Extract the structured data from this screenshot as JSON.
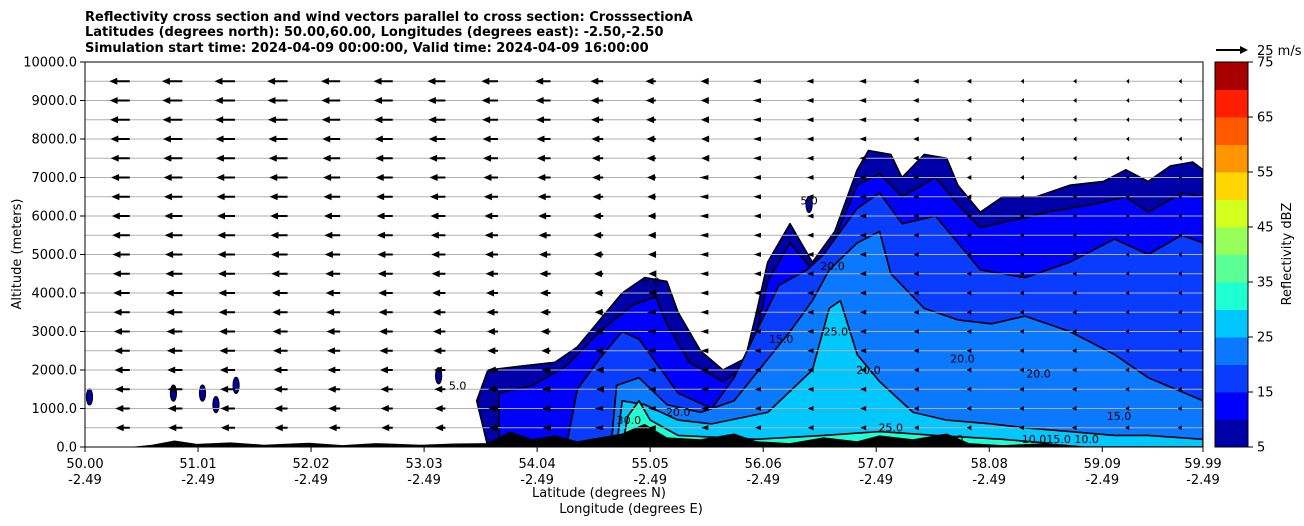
{
  "chart_data": {
    "type": "contour",
    "title_lines": [
      "Reflectivity cross section and wind vectors parallel to cross section: CrosssectionA",
      "Latitudes (degrees north): 50.00,60.00, Longitudes (degrees east): -2.50,-2.50",
      "Simulation start time: 2024-04-09 00:00:00, Valid time: 2024-04-09 16:00:00"
    ],
    "xlabel": "Latitude (degrees N)",
    "xlabel2": "Longitude (degrees E)",
    "ylabel": "Altitude (meters)",
    "xlim": [
      50.0,
      59.99
    ],
    "ylim": [
      0,
      10000
    ],
    "x_ticks": [
      {
        "lat": "50.00",
        "lon": "-2.49",
        "value": 50.0
      },
      {
        "lat": "51.01",
        "lon": "-2.49",
        "value": 51.01
      },
      {
        "lat": "52.02",
        "lon": "-2.49",
        "value": 52.02
      },
      {
        "lat": "53.03",
        "lon": "-2.49",
        "value": 53.03
      },
      {
        "lat": "54.04",
        "lon": "-2.49",
        "value": 54.04
      },
      {
        "lat": "55.05",
        "lon": "-2.49",
        "value": 55.05
      },
      {
        "lat": "56.06",
        "lon": "-2.49",
        "value": 56.06
      },
      {
        "lat": "57.07",
        "lon": "-2.49",
        "value": 57.07
      },
      {
        "lat": "58.08",
        "lon": "-2.49",
        "value": 58.08
      },
      {
        "lat": "59.09",
        "lon": "-2.49",
        "value": 59.09
      },
      {
        "lat": "59.99",
        "lon": "-2.49",
        "value": 59.99
      }
    ],
    "y_ticks": [
      0,
      1000,
      2000,
      3000,
      4000,
      5000,
      6000,
      7000,
      8000,
      9000,
      10000
    ],
    "y_tick_labels": [
      "0.0",
      "1000.0",
      "2000.0",
      "3000.0",
      "4000.0",
      "5000.0",
      "6000.0",
      "7000.0",
      "8000.0",
      "9000.0",
      "10000.0"
    ],
    "grid": "horizontal",
    "colorbar": {
      "label": "Reflectivity dBZ",
      "min": 5,
      "max": 75,
      "step": 5,
      "tick_values": [
        5,
        15,
        25,
        35,
        45,
        55,
        65,
        75
      ],
      "tick_labels": [
        "5",
        "15",
        "25",
        "35",
        "45",
        "55",
        "65",
        "75"
      ],
      "colors": [
        "#0000a8",
        "#0000ff",
        "#0a3cff",
        "#0a78ff",
        "#00c8ff",
        "#1effd2",
        "#5aff96",
        "#96ff5a",
        "#d2ff1e",
        "#ffd700",
        "#ff9600",
        "#ff5a00",
        "#ff1e00",
        "#a80000"
      ]
    },
    "wind_key": {
      "value": 25,
      "label": "25 m/s"
    },
    "wind_vectors": {
      "levels_m": [
        500,
        1000,
        1500,
        2000,
        2500,
        3000,
        3500,
        4000,
        4500,
        5000,
        5500,
        6000,
        6500,
        7000,
        7500,
        8000,
        8500,
        9000,
        9500
      ],
      "columns_lat": [
        50.4,
        50.87,
        51.34,
        51.81,
        52.28,
        52.75,
        53.22,
        53.69,
        54.16,
        54.63,
        55.1,
        55.57,
        56.04,
        56.51,
        56.98,
        57.45,
        57.92,
        58.39,
        58.86,
        59.33,
        59.8
      ],
      "u_ms_top": [
        -16,
        -16,
        -16,
        -16,
        -15,
        -15,
        -14,
        -13,
        -12,
        -10,
        -8,
        -6,
        -5,
        -4,
        -4,
        -3,
        -2,
        -1,
        -1,
        -0.5,
        -0.5
      ],
      "u_ms_low": [
        -11,
        -11,
        -11,
        -10,
        -9,
        -9,
        -8,
        -7,
        -6,
        -5,
        -4,
        -4,
        -3,
        -3,
        -3,
        -2,
        -2,
        -2,
        -2,
        -1.5,
        -1.5
      ]
    },
    "reflectivity_regions": [
      {
        "level": 5,
        "boundary": [
          [
            53.6,
            0
          ],
          [
            53.5,
            1200
          ],
          [
            53.6,
            2000
          ],
          [
            53.9,
            2100
          ],
          [
            54.2,
            2200
          ],
          [
            54.4,
            2600
          ],
          [
            54.6,
            3300
          ],
          [
            54.8,
            4000
          ],
          [
            55.0,
            4400
          ],
          [
            55.2,
            4300
          ],
          [
            55.3,
            3500
          ],
          [
            55.5,
            2500
          ],
          [
            55.7,
            2000
          ],
          [
            55.9,
            2300
          ],
          [
            56.0,
            3500
          ],
          [
            56.1,
            4800
          ],
          [
            56.3,
            5800
          ],
          [
            56.5,
            4800
          ],
          [
            56.7,
            5600
          ],
          [
            56.9,
            7200
          ],
          [
            57.0,
            7700
          ],
          [
            57.2,
            7600
          ],
          [
            57.3,
            7000
          ],
          [
            57.5,
            7600
          ],
          [
            57.7,
            7500
          ],
          [
            57.8,
            6800
          ],
          [
            58.0,
            6100
          ],
          [
            58.2,
            6500
          ],
          [
            58.5,
            6500
          ],
          [
            58.8,
            6800
          ],
          [
            59.1,
            6900
          ],
          [
            59.3,
            7200
          ],
          [
            59.5,
            6900
          ],
          [
            59.7,
            7300
          ],
          [
            59.9,
            7400
          ],
          [
            59.99,
            7200
          ],
          [
            59.99,
            0
          ]
        ]
      },
      {
        "level": 10,
        "boundary": [
          [
            53.7,
            0
          ],
          [
            53.7,
            1400
          ],
          [
            54.0,
            1600
          ],
          [
            54.3,
            2100
          ],
          [
            54.6,
            3000
          ],
          [
            54.9,
            3700
          ],
          [
            55.1,
            3900
          ],
          [
            55.2,
            3200
          ],
          [
            55.4,
            2200
          ],
          [
            55.7,
            1700
          ],
          [
            55.95,
            2200
          ],
          [
            56.1,
            4300
          ],
          [
            56.3,
            5300
          ],
          [
            56.5,
            4600
          ],
          [
            56.7,
            5400
          ],
          [
            56.9,
            6800
          ],
          [
            57.1,
            7100
          ],
          [
            57.3,
            6500
          ],
          [
            57.6,
            7000
          ],
          [
            57.8,
            6300
          ],
          [
            58.0,
            5700
          ],
          [
            58.3,
            5900
          ],
          [
            58.6,
            6100
          ],
          [
            59.0,
            6300
          ],
          [
            59.3,
            6500
          ],
          [
            59.5,
            6100
          ],
          [
            59.8,
            6600
          ],
          [
            59.99,
            6500
          ],
          [
            59.99,
            0
          ]
        ]
      },
      {
        "level": 15,
        "boundary": [
          [
            54.3,
            0
          ],
          [
            54.4,
            1500
          ],
          [
            54.6,
            2300
          ],
          [
            54.8,
            3000
          ],
          [
            54.95,
            2800
          ],
          [
            55.1,
            2200
          ],
          [
            55.3,
            1400
          ],
          [
            55.6,
            1000
          ],
          [
            55.8,
            1800
          ],
          [
            56.0,
            3000
          ],
          [
            56.2,
            4200
          ],
          [
            56.45,
            4600
          ],
          [
            56.6,
            5000
          ],
          [
            56.9,
            6200
          ],
          [
            57.1,
            6600
          ],
          [
            57.3,
            5800
          ],
          [
            57.6,
            6000
          ],
          [
            57.8,
            5300
          ],
          [
            58.0,
            4600
          ],
          [
            58.4,
            4400
          ],
          [
            58.8,
            4800
          ],
          [
            59.2,
            5400
          ],
          [
            59.5,
            5000
          ],
          [
            59.8,
            5500
          ],
          [
            59.99,
            5300
          ],
          [
            59.99,
            0
          ]
        ]
      },
      {
        "level": 20,
        "boundary": [
          [
            54.7,
            0
          ],
          [
            54.75,
            1600
          ],
          [
            54.95,
            1800
          ],
          [
            55.2,
            1100
          ],
          [
            55.5,
            900
          ],
          [
            55.8,
            1200
          ],
          [
            56.3,
            3000
          ],
          [
            56.5,
            3800
          ],
          [
            56.65,
            4600
          ],
          [
            56.9,
            5300
          ],
          [
            57.1,
            5600
          ],
          [
            57.2,
            4500
          ],
          [
            57.5,
            3600
          ],
          [
            57.8,
            3300
          ],
          [
            58.1,
            3200
          ],
          [
            58.4,
            3400
          ],
          [
            58.8,
            3000
          ],
          [
            59.2,
            2400
          ],
          [
            59.5,
            1800
          ],
          [
            59.99,
            1200
          ],
          [
            59.99,
            0
          ]
        ]
      },
      {
        "level": 25,
        "boundary": [
          [
            54.75,
            0
          ],
          [
            54.8,
            1200
          ],
          [
            55.0,
            1100
          ],
          [
            55.3,
            700
          ],
          [
            55.6,
            600
          ],
          [
            56.1,
            900
          ],
          [
            56.5,
            2000
          ],
          [
            56.65,
            3600
          ],
          [
            56.75,
            3800
          ],
          [
            56.9,
            2400
          ],
          [
            57.1,
            1700
          ],
          [
            57.4,
            900
          ],
          [
            57.7,
            700
          ],
          [
            58.1,
            600
          ],
          [
            58.4,
            500
          ],
          [
            58.8,
            400
          ],
          [
            59.2,
            300
          ],
          [
            59.5,
            300
          ],
          [
            59.99,
            200
          ],
          [
            59.99,
            0
          ]
        ]
      },
      {
        "level": 30,
        "boundary": [
          [
            54.8,
            0
          ],
          [
            54.85,
            800
          ],
          [
            54.95,
            1200
          ],
          [
            55.05,
            700
          ],
          [
            55.3,
            300
          ],
          [
            56.0,
            200
          ],
          [
            56.6,
            300
          ],
          [
            57.1,
            400
          ],
          [
            57.6,
            300
          ],
          [
            58.2,
            200
          ],
          [
            58.6,
            100
          ],
          [
            58.6,
            0
          ]
        ]
      },
      {
        "level": 35,
        "boundary": [
          [
            54.95,
            0
          ],
          [
            54.97,
            400
          ],
          [
            55.03,
            400
          ],
          [
            55.06,
            0
          ]
        ]
      }
    ],
    "isolated_cells": [
      {
        "lat": 50.04,
        "alt": 1300,
        "dbz": 5
      },
      {
        "lat": 50.79,
        "alt": 1400,
        "dbz": 5
      },
      {
        "lat": 51.05,
        "alt": 1400,
        "dbz": 5
      },
      {
        "lat": 51.17,
        "alt": 1100,
        "dbz": 5
      },
      {
        "lat": 51.35,
        "alt": 1600,
        "dbz": 5
      },
      {
        "lat": 53.16,
        "alt": 1850,
        "dbz": 5
      },
      {
        "lat": 56.47,
        "alt": 6300,
        "dbz": 5
      }
    ],
    "terrain": [
      [
        50.0,
        0
      ],
      [
        50.4,
        0
      ],
      [
        50.6,
        60
      ],
      [
        50.8,
        170
      ],
      [
        51.0,
        80
      ],
      [
        51.3,
        120
      ],
      [
        51.6,
        60
      ],
      [
        52.0,
        110
      ],
      [
        52.3,
        50
      ],
      [
        52.6,
        100
      ],
      [
        53.0,
        60
      ],
      [
        53.3,
        90
      ],
      [
        53.6,
        100
      ],
      [
        53.8,
        400
      ],
      [
        54.0,
        200
      ],
      [
        54.2,
        300
      ],
      [
        54.4,
        150
      ],
      [
        54.6,
        250
      ],
      [
        54.8,
        350
      ],
      [
        55.0,
        600
      ],
      [
        55.2,
        250
      ],
      [
        55.5,
        200
      ],
      [
        55.8,
        350
      ],
      [
        56.0,
        150
      ],
      [
        56.3,
        100
      ],
      [
        56.6,
        250
      ],
      [
        56.9,
        150
      ],
      [
        57.1,
        300
      ],
      [
        57.4,
        200
      ],
      [
        57.7,
        350
      ],
      [
        57.9,
        100
      ],
      [
        58.2,
        50
      ],
      [
        58.6,
        100
      ],
      [
        59.0,
        0
      ],
      [
        59.99,
        0
      ]
    ],
    "contour_labels": [
      {
        "text": "20.0",
        "lat": 57.84,
        "alt": 2200
      },
      {
        "text": "25.0",
        "lat": 56.71,
        "alt": 2900
      },
      {
        "text": "15.0",
        "lat": 56.22,
        "alt": 2700
      },
      {
        "text": "20.0",
        "lat": 56.68,
        "alt": 4600
      },
      {
        "text": "20.0",
        "lat": 57.0,
        "alt": 1900
      },
      {
        "text": "20.0",
        "lat": 58.52,
        "alt": 1800
      },
      {
        "text": "5.0",
        "lat": 55.06,
        "alt": 4200
      },
      {
        "text": "5.0",
        "lat": 53.33,
        "alt": 1500
      },
      {
        "text": "5.0",
        "lat": 56.47,
        "alt": 6300
      },
      {
        "text": "20.0",
        "lat": 55.3,
        "alt": 800
      },
      {
        "text": "30.0",
        "lat": 54.86,
        "alt": 600
      },
      {
        "text": "25.0",
        "lat": 57.2,
        "alt": 400
      },
      {
        "text": "25.0",
        "lat": 57.74,
        "alt": 100
      },
      {
        "text": "15.0",
        "lat": 59.24,
        "alt": 700
      },
      {
        "text": "10.0",
        "lat": 58.48,
        "alt": 100
      },
      {
        "text": "15.0",
        "lat": 58.7,
        "alt": 100
      },
      {
        "text": "10.0",
        "lat": 58.95,
        "alt": 100
      }
    ]
  }
}
